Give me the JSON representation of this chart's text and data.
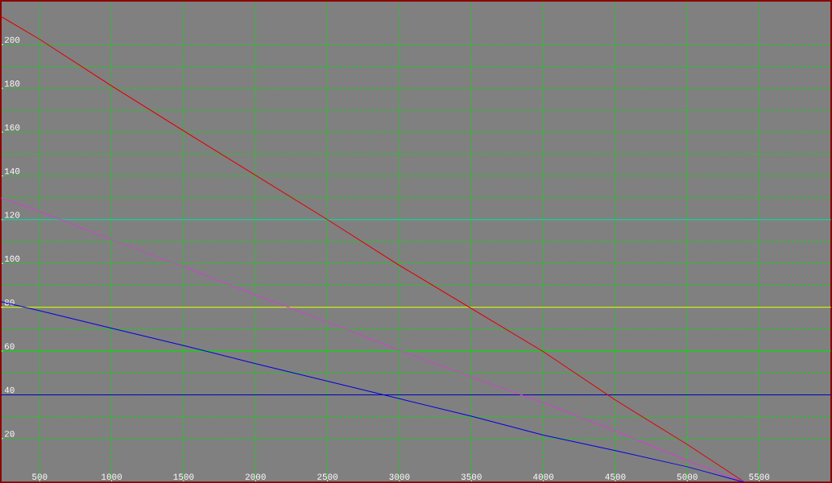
{
  "chart_data": {
    "type": "line",
    "x": [
      230,
      500,
      1000,
      1500,
      2000,
      2500,
      3000,
      3500,
      4000,
      4500,
      5000,
      5400
    ],
    "series": [
      {
        "color": "#e00000",
        "values": [
          212.9,
          202.4,
          181.1,
          160.6,
          140.3,
          120,
          99.1,
          79.4,
          59.7,
          37.6,
          17.3,
          0
        ]
      },
      {
        "color": "#d040d0",
        "values": [
          129.9,
          123.7,
          110.9,
          98.5,
          85.6,
          73.3,
          60.4,
          48.1,
          36.4,
          23.5,
          9.9,
          0
        ]
      },
      {
        "color": "#0000e0",
        "values": [
          82.5,
          78.4,
          70.4,
          62.5,
          54.2,
          46.2,
          38.2,
          30.2,
          21.6,
          14.5,
          7.1,
          0
        ]
      }
    ],
    "ref_lines": [
      {
        "axis": "y",
        "value": 120,
        "color": "#00e0e0"
      },
      {
        "axis": "y",
        "value": 80,
        "color": "#ffff00"
      },
      {
        "axis": "y",
        "value": 60,
        "color": "#00e000"
      },
      {
        "axis": "y",
        "value": 40,
        "color": "#0000c0"
      }
    ],
    "xlim": [
      230,
      6000
    ],
    "ylim": [
      0,
      220
    ],
    "xticks": [
      500,
      1000,
      1500,
      2000,
      2500,
      3000,
      3500,
      4000,
      4500,
      5000,
      5500
    ],
    "yticks": [
      20,
      40,
      60,
      80,
      100,
      120,
      140,
      160,
      180,
      200
    ],
    "grid": true,
    "marker": "none",
    "line_style": "solid"
  }
}
